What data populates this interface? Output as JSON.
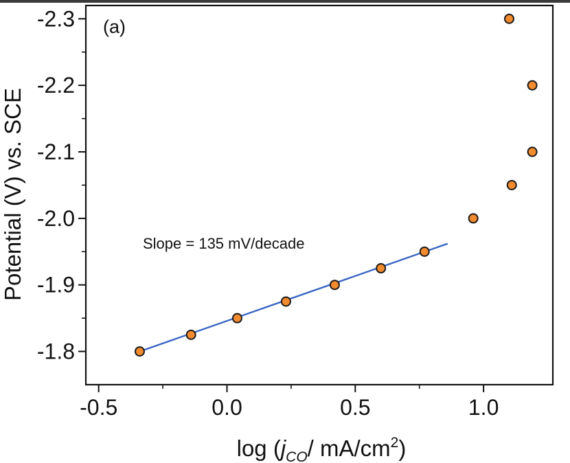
{
  "chart_data": {
    "type": "scatter",
    "panel_label": "(a)",
    "xlabel_parts": {
      "prefix": "log (",
      "var": "j",
      "sub": "CO",
      "suffix": "/ mA/cm",
      "sup": "2",
      "close": ")"
    },
    "ylabel": "Potential (V) vs. SCE",
    "xlim": [
      -0.55,
      1.27
    ],
    "ylim": [
      -1.75,
      -2.32
    ],
    "x_ticks": [
      -0.5,
      0.0,
      0.5,
      1.0
    ],
    "x_tick_labels": [
      "-0.5",
      "0.0",
      "0.5",
      "1.0"
    ],
    "x_minor_ticks": [
      -0.25,
      0.25,
      0.75
    ],
    "y_ticks": [
      -1.8,
      -1.9,
      -2.0,
      -2.1,
      -2.2,
      -2.3
    ],
    "y_tick_labels": [
      "-1.8",
      "-1.9",
      "-2.0",
      "-2.1",
      "-2.2",
      "-2.3"
    ],
    "y_minor_ticks": [
      -1.85,
      -1.95,
      -2.05,
      -2.15,
      -2.25
    ],
    "series": [
      {
        "marker_color": "#f28a2e",
        "x": [
          -0.34,
          -0.14,
          0.04,
          0.23,
          0.42,
          0.6,
          0.77,
          0.96,
          1.1,
          1.11,
          1.19,
          1.19
        ],
        "y": [
          -1.8,
          -1.825,
          -1.85,
          -1.875,
          -1.9,
          -1.925,
          -1.95,
          -2.0,
          -2.3,
          -2.05,
          -2.2,
          -2.1
        ]
      }
    ],
    "fit_line": {
      "color": "#3a67c4",
      "x": [
        -0.34,
        0.86
      ],
      "y": [
        -1.8,
        -1.962
      ]
    },
    "annotation": "Slope = 135 mV/decade",
    "grid": false,
    "legend": "none"
  }
}
